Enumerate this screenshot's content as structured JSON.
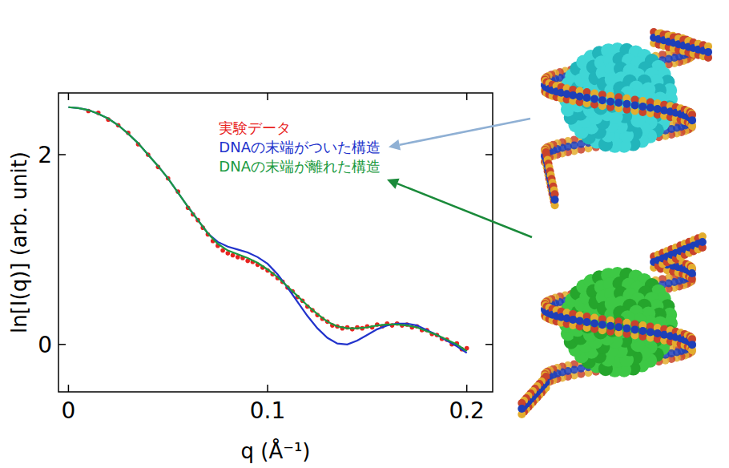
{
  "chart_data": {
    "type": "line",
    "xlabel": "q (Å⁻¹)",
    "ylabel": "ln[I(q)] (arb. unit)",
    "xlim": [
      -0.005,
      0.213
    ],
    "ylim": [
      -0.5,
      2.65
    ],
    "xticks": [
      0,
      0.1,
      0.2
    ],
    "yticks": [
      0,
      2
    ],
    "grid": false,
    "legend": "top-right",
    "series": [
      {
        "name": "実験データ",
        "color": "#e8231e",
        "type": "scatter",
        "marker": "circle",
        "x": [
          0.01,
          0.015,
          0.02,
          0.025,
          0.03,
          0.035,
          0.04,
          0.045,
          0.05,
          0.055,
          0.06,
          0.0625,
          0.065,
          0.0675,
          0.07,
          0.0725,
          0.075,
          0.0775,
          0.08,
          0.0825,
          0.085,
          0.0875,
          0.09,
          0.0925,
          0.095,
          0.0975,
          0.1,
          0.1025,
          0.105,
          0.1075,
          0.11,
          0.1125,
          0.115,
          0.1175,
          0.12,
          0.1225,
          0.125,
          0.1275,
          0.13,
          0.1325,
          0.135,
          0.1375,
          0.14,
          0.1425,
          0.145,
          0.1475,
          0.15,
          0.1525,
          0.155,
          0.1575,
          0.16,
          0.1625,
          0.165,
          0.1675,
          0.17,
          0.1725,
          0.175,
          0.1775,
          0.18,
          0.1825,
          0.185,
          0.1875,
          0.19,
          0.1925,
          0.195,
          0.1975,
          0.2
        ],
        "values": [
          2.46,
          2.44,
          2.37,
          2.31,
          2.23,
          2.11,
          2.0,
          1.87,
          1.75,
          1.61,
          1.44,
          1.37,
          1.31,
          1.23,
          1.16,
          1.09,
          1.04,
          0.99,
          0.96,
          0.94,
          0.92,
          0.91,
          0.88,
          0.87,
          0.84,
          0.81,
          0.78,
          0.74,
          0.7,
          0.66,
          0.6,
          0.56,
          0.5,
          0.46,
          0.4,
          0.36,
          0.31,
          0.27,
          0.24,
          0.2,
          0.19,
          0.17,
          0.18,
          0.16,
          0.18,
          0.17,
          0.19,
          0.18,
          0.21,
          0.19,
          0.22,
          0.2,
          0.22,
          0.2,
          0.21,
          0.18,
          0.19,
          0.15,
          0.15,
          0.11,
          0.1,
          0.06,
          0.05,
          0.0,
          0.01,
          -0.05,
          -0.04
        ]
      },
      {
        "name": "DNAの末端がついた構造",
        "color": "#2233cc",
        "type": "line",
        "line_style": "solid",
        "x": [
          0,
          0.005,
          0.01,
          0.015,
          0.02,
          0.025,
          0.03,
          0.035,
          0.04,
          0.045,
          0.05,
          0.055,
          0.06,
          0.065,
          0.07,
          0.075,
          0.08,
          0.085,
          0.09,
          0.095,
          0.1,
          0.105,
          0.11,
          0.115,
          0.12,
          0.125,
          0.13,
          0.135,
          0.14,
          0.145,
          0.15,
          0.155,
          0.16,
          0.165,
          0.17,
          0.175,
          0.18,
          0.185,
          0.19,
          0.195,
          0.2
        ],
        "values": [
          2.5,
          2.49,
          2.47,
          2.43,
          2.38,
          2.31,
          2.22,
          2.12,
          2.0,
          1.88,
          1.75,
          1.6,
          1.45,
          1.31,
          1.17,
          1.08,
          1.03,
          1.0,
          0.97,
          0.92,
          0.85,
          0.74,
          0.6,
          0.45,
          0.3,
          0.17,
          0.07,
          0.01,
          0.0,
          0.04,
          0.1,
          0.16,
          0.2,
          0.22,
          0.22,
          0.2,
          0.15,
          0.1,
          0.04,
          -0.02,
          -0.09
        ]
      },
      {
        "name": "DNAの末端が離れた構造",
        "color": "#1a9a40",
        "type": "line",
        "line_style": "solid",
        "x": [
          0,
          0.005,
          0.01,
          0.015,
          0.02,
          0.025,
          0.03,
          0.035,
          0.04,
          0.045,
          0.05,
          0.055,
          0.06,
          0.065,
          0.07,
          0.075,
          0.08,
          0.085,
          0.09,
          0.095,
          0.1,
          0.105,
          0.11,
          0.115,
          0.12,
          0.125,
          0.13,
          0.135,
          0.14,
          0.145,
          0.15,
          0.155,
          0.16,
          0.165,
          0.17,
          0.175,
          0.18,
          0.185,
          0.19,
          0.195,
          0.2
        ],
        "values": [
          2.5,
          2.49,
          2.47,
          2.43,
          2.38,
          2.31,
          2.22,
          2.12,
          2.0,
          1.88,
          1.75,
          1.6,
          1.45,
          1.31,
          1.17,
          1.06,
          0.99,
          0.95,
          0.91,
          0.86,
          0.79,
          0.71,
          0.61,
          0.51,
          0.41,
          0.32,
          0.24,
          0.19,
          0.17,
          0.17,
          0.18,
          0.2,
          0.21,
          0.21,
          0.2,
          0.18,
          0.14,
          0.1,
          0.05,
          0.0,
          -0.07
        ]
      }
    ]
  }
}
